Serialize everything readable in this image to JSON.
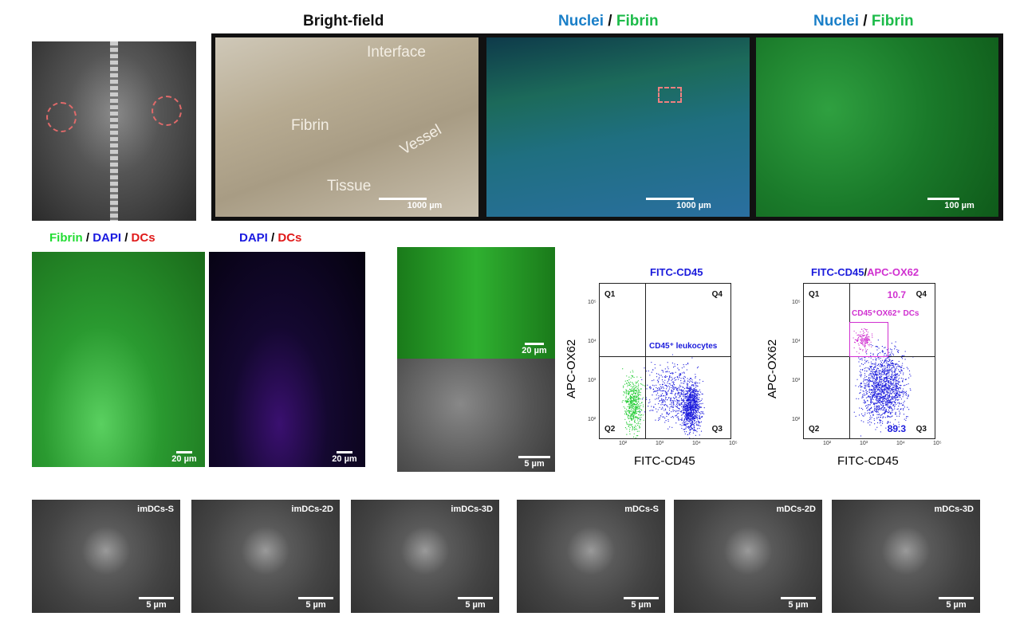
{
  "top_titles": {
    "brightfield": "Bright-field",
    "nuclei": "Nuclei",
    "slash": " / ",
    "fibrin": "Fibrin"
  },
  "brightfield": {
    "labels": [
      "Interface",
      "Fibrin",
      "Vessel",
      "Tissue"
    ],
    "scalebar": "1000 µm"
  },
  "fluor_overview": {
    "scalebar": "1000 µm"
  },
  "fluor_zoom": {
    "scalebar": "100 µm"
  },
  "row2": {
    "title1": {
      "fibrin": "Fibrin",
      "dapi": "DAPI",
      "dcs": "DCs",
      "sep": " / "
    },
    "title2": {
      "dapi": "DAPI",
      "dcs": "DCs",
      "sep": " / "
    },
    "scalebar_20": "20 µm",
    "scalebar_5": "5 µm"
  },
  "chart_data": [
    {
      "type": "scatter",
      "title": "FITC-CD45",
      "xlabel": "FITC-CD45",
      "ylabel": "APC-OX62",
      "scale": "log",
      "x_ticks": [
        "10²",
        "10³",
        "10⁴",
        "10⁵"
      ],
      "y_ticks": [
        "10²",
        "10³",
        "10⁴",
        "10⁵"
      ],
      "quadrants": [
        "Q1",
        "Q4",
        "Q2",
        "Q3"
      ],
      "annotation": "CD45⁺ leukocytes",
      "colors": {
        "negative": "#22cc33",
        "positive": "#1a1adc"
      }
    },
    {
      "type": "scatter",
      "title_a": "FITC-CD45",
      "title_sep": "/",
      "title_b": "APC-OX62",
      "xlabel": "FITC-CD45",
      "ylabel": "APC-OX62",
      "scale": "log",
      "x_ticks": [
        "10²",
        "10³",
        "10⁴",
        "10⁵"
      ],
      "y_ticks": [
        "10²",
        "10³",
        "10⁴",
        "10⁵"
      ],
      "quadrants": [
        "Q1",
        "Q4",
        "Q2",
        "Q3"
      ],
      "gate_label": "CD45⁺OX62⁺ DCs",
      "q4_percent": "10.7",
      "q3_percent": "89.3",
      "colors": {
        "gate": "#d030d0",
        "positive": "#1a1adc"
      }
    }
  ],
  "sem_row": [
    {
      "name": "imDCs-S",
      "scalebar": "5 µm"
    },
    {
      "name": "imDCs-2D",
      "scalebar": "5 µm"
    },
    {
      "name": "imDCs-3D",
      "scalebar": "5 µm"
    },
    {
      "name": "mDCs-S",
      "scalebar": "5 µm"
    },
    {
      "name": "mDCs-2D",
      "scalebar": "5 µm"
    },
    {
      "name": "mDCs-3D",
      "scalebar": "5 µm"
    }
  ]
}
